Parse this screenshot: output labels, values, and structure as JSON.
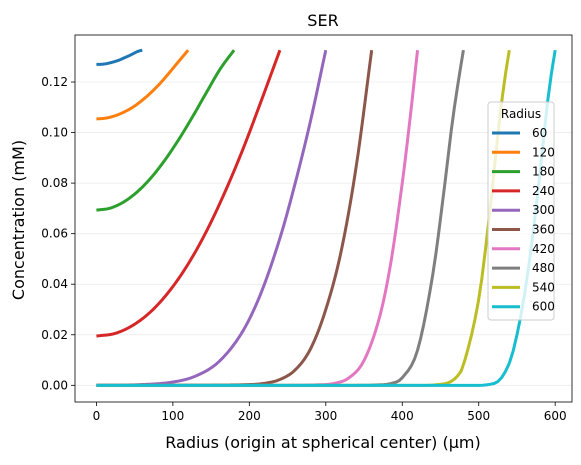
{
  "chart_data": {
    "type": "line",
    "title": "SER",
    "xlabel": "Radius (origin at spherical center) (μm)",
    "ylabel": "Concentration (mM)",
    "xlim": [
      -28,
      622
    ],
    "ylim": [
      -0.0066,
      0.1386
    ],
    "xticks": [
      0,
      100,
      200,
      300,
      400,
      500,
      600
    ],
    "yticks": [
      0.0,
      0.02,
      0.04,
      0.06,
      0.08,
      0.1,
      0.12
    ],
    "ytick_labels": [
      "0.00",
      "0.02",
      "0.04",
      "0.06",
      "0.08",
      "0.10",
      "0.12"
    ],
    "grid": "horizontal, faint",
    "legend": {
      "title": "Radius",
      "placement": "right"
    },
    "boundary_value": 0.1326,
    "series": [
      {
        "name": "60",
        "color": "#1f77b4",
        "x": [
          0,
          6,
          12,
          18,
          24,
          30,
          36,
          42,
          48,
          54,
          60
        ],
        "y": [
          0.127,
          0.127,
          0.1272,
          0.1276,
          0.1281,
          0.1287,
          0.1295,
          0.1303,
          0.1312,
          0.1321,
          0.1326
        ]
      },
      {
        "name": "120",
        "color": "#ff7f0e",
        "x": [
          0,
          12,
          24,
          36,
          48,
          60,
          72,
          84,
          96,
          108,
          120
        ],
        "y": [
          0.1054,
          0.1057,
          0.1066,
          0.1081,
          0.1101,
          0.1128,
          0.116,
          0.1197,
          0.1239,
          0.1283,
          0.1326
        ]
      },
      {
        "name": "180",
        "color": "#2ca02c",
        "x": [
          0,
          18,
          36,
          54,
          72,
          90,
          108,
          126,
          144,
          162,
          180
        ],
        "y": [
          0.0693,
          0.0701,
          0.0726,
          0.0767,
          0.0823,
          0.0893,
          0.0974,
          0.1064,
          0.1159,
          0.1252,
          0.1326
        ]
      },
      {
        "name": "240",
        "color": "#d62728",
        "x": [
          0,
          24,
          48,
          72,
          96,
          120,
          144,
          168,
          192,
          216,
          240
        ],
        "y": [
          0.0195,
          0.0205,
          0.0238,
          0.0294,
          0.0375,
          0.048,
          0.061,
          0.0764,
          0.0937,
          0.1129,
          0.1326
        ]
      },
      {
        "name": "300",
        "color": "#9467bd",
        "x": [
          0,
          60,
          100,
          130,
          160,
          190,
          215,
          240,
          260,
          280,
          300
        ],
        "y": [
          0.0,
          0.0003,
          0.0013,
          0.0037,
          0.0093,
          0.0207,
          0.0363,
          0.0582,
          0.08,
          0.1046,
          0.1326
        ]
      },
      {
        "name": "360",
        "color": "#8c564b",
        "x": [
          0,
          150,
          200,
          220,
          240,
          260,
          280,
          300,
          320,
          340,
          360
        ],
        "y": [
          0.0,
          0.0001,
          0.0003,
          0.0008,
          0.0023,
          0.0061,
          0.0144,
          0.03,
          0.0529,
          0.087,
          0.1326
        ]
      },
      {
        "name": "420",
        "color": "#e377c2",
        "x": [
          0,
          250,
          290,
          310,
          330,
          350,
          370,
          385,
          400,
          410,
          420
        ],
        "y": [
          0.0,
          0.0,
          0.0002,
          0.0007,
          0.0029,
          0.0098,
          0.0266,
          0.0484,
          0.08,
          0.105,
          0.1326
        ]
      },
      {
        "name": "480",
        "color": "#7f7f7f",
        "x": [
          0,
          340,
          370,
          385,
          400,
          420,
          440,
          455,
          465,
          473,
          480
        ],
        "y": [
          0.0,
          0.0,
          0.0002,
          0.0007,
          0.003,
          0.0139,
          0.044,
          0.078,
          0.103,
          0.1196,
          0.1326
        ]
      },
      {
        "name": "540",
        "color": "#bcbd22",
        "x": [
          0,
          430,
          450,
          460,
          470,
          480,
          500,
          515,
          525,
          533,
          540
        ],
        "y": [
          0.0,
          0.0,
          0.0004,
          0.001,
          0.003,
          0.008,
          0.034,
          0.07,
          0.099,
          0.119,
          0.1326
        ]
      },
      {
        "name": "600",
        "color": "#17becf",
        "x": [
          0,
          500,
          515,
          525,
          535,
          545,
          560,
          575,
          585,
          592,
          600
        ],
        "y": [
          0.0,
          0.0,
          0.0004,
          0.0015,
          0.0055,
          0.0135,
          0.036,
          0.07,
          0.098,
          0.117,
          0.1326
        ]
      }
    ]
  }
}
